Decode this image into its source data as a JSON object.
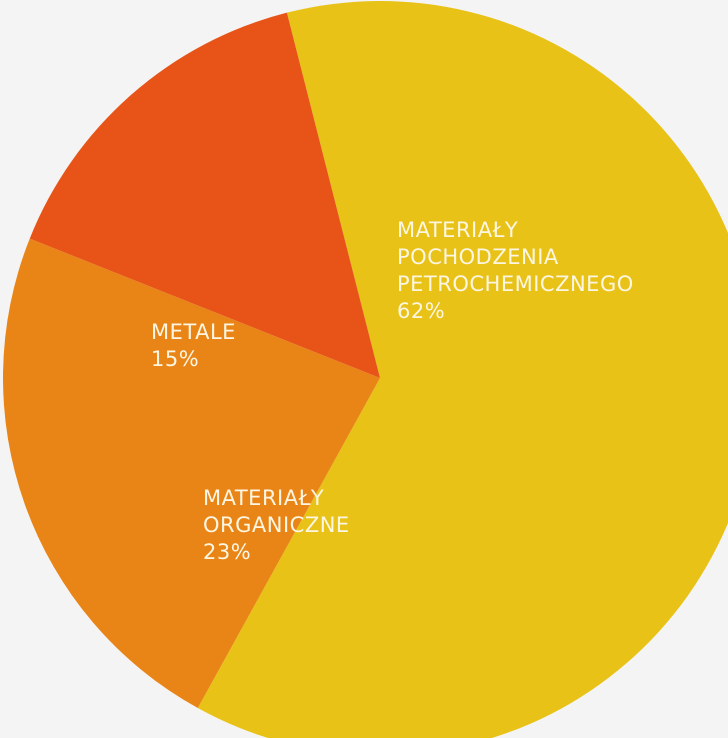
{
  "chart_data": {
    "type": "pie",
    "slices": [
      {
        "label_lines": [
          "MATERIAŁY",
          "POCHODZENIA",
          "PETROCHEMICZNEGO"
        ],
        "value": 62,
        "value_label": "62%",
        "color": "#e8c216"
      },
      {
        "label_lines": [
          "MATERIAŁY",
          "ORGANICZNE"
        ],
        "value": 23,
        "value_label": "23%",
        "color": "#e98517"
      },
      {
        "label_lines": [
          "METALE"
        ],
        "value": 15,
        "value_label": "15%",
        "color": "#e85418"
      }
    ]
  }
}
